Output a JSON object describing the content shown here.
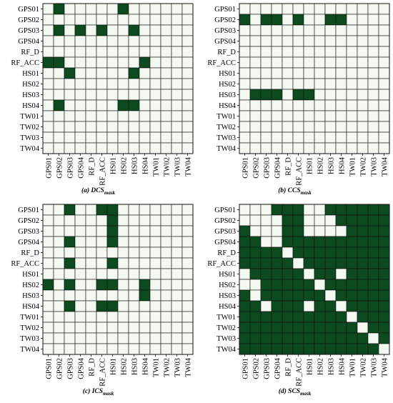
{
  "labels": [
    "GPS01",
    "GPS02",
    "GPS03",
    "GPS04",
    "RF_D",
    "RF_ACC",
    "HS01",
    "HS02",
    "HS03",
    "HS04",
    "TW01",
    "TW02",
    "TW03",
    "TW04"
  ],
  "colors": {
    "filled": "#0d4a1f",
    "empty": "#f3f9f1",
    "grid": "#111111"
  },
  "chart_data": [
    {
      "type": "heatmap",
      "caption_main": "(a) DCS",
      "caption_sub": "mask",
      "rows": [
        "GPS01",
        "GPS02",
        "GPS03",
        "GPS04",
        "RF_D",
        "RF_ACC",
        "HS01",
        "HS02",
        "HS03",
        "HS04",
        "TW01",
        "TW02",
        "TW03",
        "TW04"
      ],
      "cols": [
        "GPS01",
        "GPS02",
        "GPS03",
        "GPS04",
        "RF_D",
        "RF_ACC",
        "HS01",
        "HS02",
        "HS03",
        "HS04",
        "TW01",
        "TW02",
        "TW03",
        "TW04"
      ],
      "values": [
        [
          0,
          1,
          0,
          0,
          0,
          0,
          0,
          1,
          0,
          0,
          0,
          0,
          0,
          0
        ],
        [
          0,
          0,
          0,
          0,
          0,
          0,
          0,
          0,
          0,
          0,
          0,
          0,
          0,
          0
        ],
        [
          0,
          1,
          0,
          1,
          0,
          1,
          0,
          0,
          1,
          0,
          0,
          0,
          0,
          0
        ],
        [
          0,
          0,
          0,
          0,
          0,
          0,
          0,
          0,
          0,
          0,
          0,
          0,
          0,
          0
        ],
        [
          0,
          0,
          0,
          0,
          0,
          0,
          0,
          0,
          0,
          0,
          0,
          0,
          0,
          0
        ],
        [
          1,
          1,
          0,
          0,
          0,
          0,
          0,
          0,
          0,
          1,
          0,
          0,
          0,
          0
        ],
        [
          0,
          0,
          1,
          0,
          0,
          0,
          0,
          0,
          1,
          0,
          0,
          0,
          0,
          0
        ],
        [
          0,
          0,
          0,
          0,
          0,
          0,
          0,
          0,
          0,
          0,
          0,
          0,
          0,
          0
        ],
        [
          0,
          0,
          0,
          0,
          0,
          0,
          0,
          0,
          0,
          0,
          0,
          0,
          0,
          0
        ],
        [
          0,
          1,
          0,
          0,
          0,
          0,
          0,
          1,
          1,
          0,
          0,
          0,
          0,
          0
        ],
        [
          0,
          0,
          0,
          0,
          0,
          0,
          0,
          0,
          0,
          0,
          0,
          0,
          0,
          0
        ],
        [
          0,
          0,
          0,
          0,
          0,
          0,
          0,
          0,
          0,
          0,
          0,
          0,
          0,
          0
        ],
        [
          0,
          0,
          0,
          0,
          0,
          0,
          0,
          0,
          0,
          0,
          0,
          0,
          0,
          0
        ],
        [
          0,
          0,
          0,
          0,
          0,
          0,
          0,
          0,
          0,
          0,
          0,
          0,
          0,
          0
        ]
      ]
    },
    {
      "type": "heatmap",
      "caption_main": "(b) CCS",
      "caption_sub": "mask",
      "rows": [
        "GPS01",
        "GPS02",
        "GPS03",
        "GPS04",
        "RF_D",
        "RF_ACC",
        "HS01",
        "HS02",
        "HS03",
        "HS04",
        "TW01",
        "TW02",
        "TW03",
        "TW04"
      ],
      "cols": [
        "GPS01",
        "GPS02",
        "GPS03",
        "GPS04",
        "RF_D",
        "RF_ACC",
        "HS01",
        "HS02",
        "HS03",
        "HS04",
        "TW01",
        "TW02",
        "TW03",
        "TW04"
      ],
      "values": [
        [
          0,
          0,
          0,
          0,
          0,
          0,
          0,
          0,
          0,
          0,
          0,
          0,
          0,
          0
        ],
        [
          1,
          0,
          1,
          1,
          0,
          1,
          0,
          0,
          1,
          1,
          0,
          0,
          0,
          0
        ],
        [
          0,
          0,
          0,
          0,
          0,
          0,
          0,
          0,
          0,
          0,
          0,
          0,
          0,
          0
        ],
        [
          0,
          0,
          0,
          0,
          0,
          0,
          0,
          0,
          0,
          0,
          0,
          0,
          0,
          0
        ],
        [
          0,
          0,
          0,
          0,
          0,
          0,
          0,
          0,
          0,
          0,
          0,
          0,
          0,
          0
        ],
        [
          0,
          0,
          0,
          0,
          0,
          0,
          0,
          0,
          0,
          0,
          0,
          0,
          0,
          0
        ],
        [
          0,
          0,
          0,
          0,
          0,
          0,
          0,
          0,
          0,
          0,
          0,
          0,
          0,
          0
        ],
        [
          0,
          0,
          0,
          0,
          0,
          0,
          0,
          0,
          0,
          0,
          0,
          0,
          0,
          0
        ],
        [
          0,
          1,
          1,
          1,
          0,
          1,
          1,
          0,
          0,
          0,
          0,
          0,
          0,
          0
        ],
        [
          0,
          0,
          0,
          0,
          0,
          0,
          0,
          0,
          0,
          0,
          0,
          0,
          0,
          0
        ],
        [
          0,
          0,
          0,
          0,
          0,
          0,
          0,
          0,
          0,
          0,
          0,
          0,
          0,
          0
        ],
        [
          0,
          0,
          0,
          0,
          0,
          0,
          0,
          0,
          0,
          0,
          0,
          0,
          0,
          0
        ],
        [
          0,
          0,
          0,
          0,
          0,
          0,
          0,
          0,
          0,
          0,
          0,
          0,
          0,
          0
        ],
        [
          0,
          0,
          0,
          0,
          0,
          0,
          0,
          0,
          0,
          0,
          0,
          0,
          0,
          0
        ]
      ]
    },
    {
      "type": "heatmap",
      "caption_main": "(c) ICS",
      "caption_sub": "mask",
      "rows": [
        "GPS01",
        "GPS02",
        "GPS03",
        "GPS04",
        "RF_D",
        "RF_ACC",
        "HS01",
        "HS02",
        "HS03",
        "HS04",
        "TW01",
        "TW02",
        "TW03",
        "TW04"
      ],
      "cols": [
        "GPS01",
        "GPS02",
        "GPS03",
        "GPS04",
        "RF_D",
        "RF_ACC",
        "HS01",
        "HS02",
        "HS03",
        "HS04",
        "TW01",
        "TW02",
        "TW03",
        "TW04"
      ],
      "values": [
        [
          0,
          0,
          1,
          0,
          0,
          1,
          1,
          0,
          0,
          0,
          0,
          0,
          0,
          0
        ],
        [
          0,
          0,
          0,
          0,
          0,
          0,
          1,
          0,
          0,
          0,
          0,
          0,
          0,
          0
        ],
        [
          0,
          0,
          0,
          0,
          0,
          0,
          1,
          0,
          0,
          0,
          0,
          0,
          0,
          0
        ],
        [
          0,
          0,
          1,
          0,
          0,
          0,
          1,
          0,
          0,
          0,
          0,
          0,
          0,
          0
        ],
        [
          0,
          0,
          0,
          0,
          0,
          0,
          0,
          0,
          0,
          0,
          0,
          0,
          0,
          0
        ],
        [
          0,
          0,
          1,
          0,
          0,
          0,
          1,
          0,
          0,
          0,
          0,
          0,
          0,
          0
        ],
        [
          0,
          0,
          0,
          0,
          0,
          0,
          0,
          0,
          0,
          0,
          0,
          0,
          0,
          0
        ],
        [
          1,
          0,
          1,
          0,
          0,
          1,
          1,
          0,
          0,
          1,
          0,
          0,
          0,
          0
        ],
        [
          0,
          0,
          0,
          0,
          0,
          0,
          0,
          0,
          0,
          1,
          0,
          0,
          0,
          0
        ],
        [
          0,
          0,
          1,
          0,
          0,
          1,
          1,
          0,
          0,
          0,
          0,
          0,
          0,
          0
        ],
        [
          0,
          0,
          0,
          0,
          0,
          0,
          0,
          0,
          0,
          0,
          0,
          0,
          0,
          0
        ],
        [
          0,
          0,
          0,
          0,
          0,
          0,
          0,
          0,
          0,
          0,
          0,
          0,
          0,
          0
        ],
        [
          0,
          0,
          0,
          0,
          0,
          0,
          0,
          0,
          0,
          0,
          0,
          0,
          0,
          0
        ],
        [
          0,
          0,
          0,
          0,
          0,
          0,
          0,
          0,
          0,
          0,
          0,
          0,
          0,
          0
        ]
      ]
    },
    {
      "type": "heatmap",
      "caption_main": "(d) SCS",
      "caption_sub": "mask",
      "rows": [
        "GPS01",
        "GPS02",
        "GPS03",
        "GPS04",
        "RF_D",
        "RF_ACC",
        "HS01",
        "HS02",
        "HS03",
        "HS04",
        "TW01",
        "TW02",
        "TW03",
        "TW04"
      ],
      "cols": [
        "GPS01",
        "GPS02",
        "GPS03",
        "GPS04",
        "RF_D",
        "RF_ACC",
        "HS01",
        "HS02",
        "HS03",
        "HS04",
        "TW01",
        "TW02",
        "TW03",
        "TW04"
      ],
      "values": [
        [
          0,
          0,
          0,
          1,
          1,
          1,
          0,
          0,
          1,
          1,
          1,
          1,
          1,
          1
        ],
        [
          0,
          0,
          0,
          0,
          1,
          1,
          0,
          0,
          0,
          1,
          1,
          1,
          1,
          1
        ],
        [
          1,
          0,
          0,
          0,
          1,
          1,
          0,
          0,
          0,
          0,
          1,
          1,
          1,
          1
        ],
        [
          1,
          1,
          0,
          0,
          1,
          1,
          1,
          1,
          1,
          1,
          1,
          1,
          1,
          1
        ],
        [
          1,
          1,
          1,
          1,
          0,
          1,
          1,
          1,
          1,
          1,
          1,
          1,
          1,
          1
        ],
        [
          1,
          1,
          1,
          1,
          1,
          0,
          1,
          1,
          1,
          1,
          1,
          1,
          1,
          1
        ],
        [
          0,
          1,
          1,
          1,
          1,
          1,
          0,
          1,
          1,
          0,
          1,
          1,
          1,
          1
        ],
        [
          0,
          0,
          1,
          1,
          1,
          1,
          1,
          0,
          1,
          1,
          1,
          1,
          1,
          1
        ],
        [
          1,
          0,
          1,
          1,
          1,
          1,
          1,
          1,
          0,
          1,
          1,
          1,
          1,
          1
        ],
        [
          1,
          1,
          0,
          1,
          1,
          1,
          0,
          1,
          1,
          0,
          1,
          1,
          1,
          1
        ],
        [
          1,
          1,
          1,
          1,
          1,
          1,
          1,
          1,
          1,
          1,
          0,
          1,
          1,
          1
        ],
        [
          1,
          1,
          1,
          1,
          1,
          1,
          1,
          1,
          1,
          1,
          1,
          0,
          1,
          1
        ],
        [
          1,
          1,
          1,
          1,
          1,
          1,
          1,
          1,
          1,
          1,
          1,
          1,
          0,
          1
        ],
        [
          1,
          1,
          1,
          1,
          1,
          1,
          1,
          1,
          1,
          1,
          1,
          1,
          1,
          0
        ]
      ]
    }
  ]
}
